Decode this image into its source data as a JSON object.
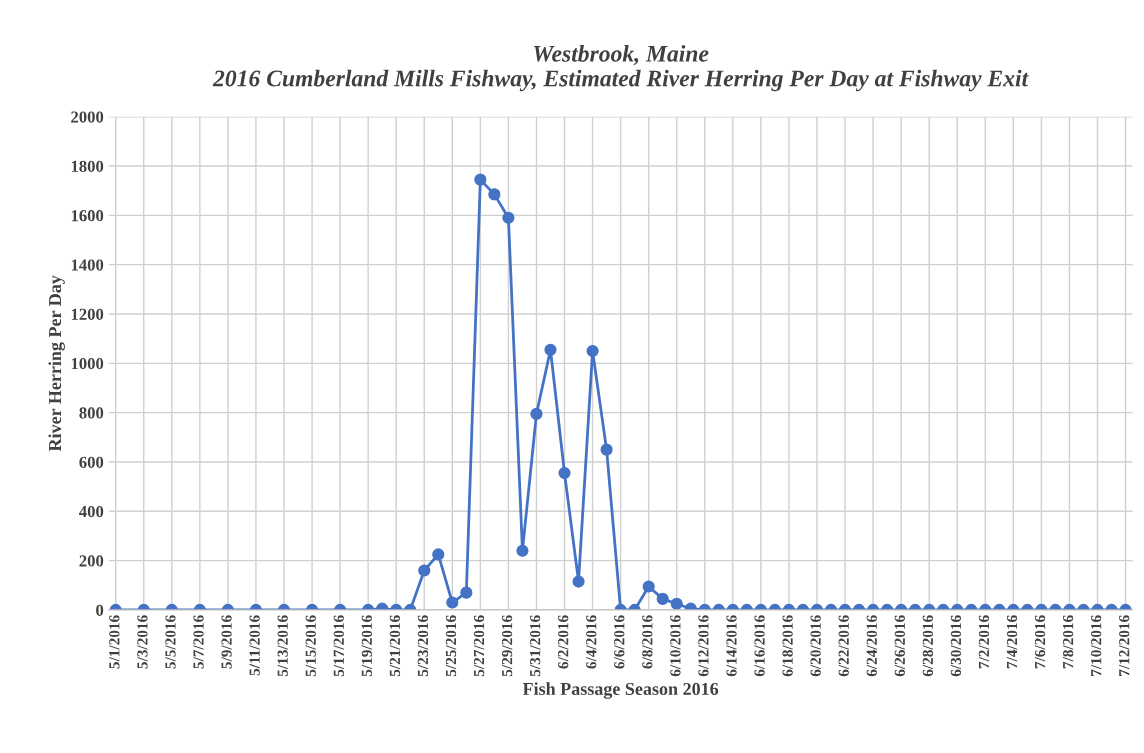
{
  "chart_data": {
    "type": "line",
    "title": "Westbrook, Maine\n2016 Cumberland Mills Fishway, Estimated River Herring Per Day at Fishway Exit",
    "xlabel": "Fish Passage Season 2016",
    "ylabel": "River Herring Per Day",
    "x": [
      "2016-05-01",
      "2016-05-03",
      "2016-05-05",
      "2016-05-07",
      "2016-05-09",
      "2016-05-11",
      "2016-05-13",
      "2016-05-15",
      "2016-05-17",
      "2016-05-19",
      "2016-05-20",
      "2016-05-21",
      "2016-05-22",
      "2016-05-23",
      "2016-05-24",
      "2016-05-25",
      "2016-05-26",
      "2016-05-27",
      "2016-05-28",
      "2016-05-29",
      "2016-05-30",
      "2016-05-31",
      "2016-06-01",
      "2016-06-02",
      "2016-06-03",
      "2016-06-04",
      "2016-06-05",
      "2016-06-06",
      "2016-06-07",
      "2016-06-08",
      "2016-06-09",
      "2016-06-10",
      "2016-06-11",
      "2016-06-12",
      "2016-06-13",
      "2016-06-14",
      "2016-06-15",
      "2016-06-16",
      "2016-06-17",
      "2016-06-18",
      "2016-06-19",
      "2016-06-20",
      "2016-06-21",
      "2016-06-22",
      "2016-06-23",
      "2016-06-24",
      "2016-06-25",
      "2016-06-26",
      "2016-06-27",
      "2016-06-28",
      "2016-06-29",
      "2016-06-30",
      "2016-07-01",
      "2016-07-02",
      "2016-07-03",
      "2016-07-04",
      "2016-07-05",
      "2016-07-06",
      "2016-07-07",
      "2016-07-08",
      "2016-07-09",
      "2016-07-10",
      "2016-07-11",
      "2016-07-12"
    ],
    "series": [
      {
        "color": "#4472c4",
        "values": [
          0,
          0,
          0,
          0,
          0,
          0,
          0,
          0,
          0,
          0,
          5,
          0,
          0,
          160,
          225,
          30,
          70,
          1745,
          1685,
          1590,
          240,
          795,
          1055,
          555,
          115,
          1050,
          650,
          0,
          0,
          95,
          45,
          25,
          5,
          0,
          0,
          0,
          0,
          0,
          0,
          0,
          0,
          0,
          0,
          0,
          0,
          0,
          0,
          0,
          0,
          0,
          0,
          0,
          0,
          0,
          0,
          0,
          0,
          0,
          0,
          0,
          0,
          0,
          0,
          0
        ]
      }
    ],
    "xlim": [
      "2016-04-30T12:00",
      "2016-07-12T12:00"
    ],
    "xticks": [
      {
        "value": "2016-05-01",
        "label": "5/1/2016"
      },
      {
        "value": "2016-05-03",
        "label": "5/3/2016"
      },
      {
        "value": "2016-05-05",
        "label": "5/5/2016"
      },
      {
        "value": "2016-05-07",
        "label": "5/7/2016"
      },
      {
        "value": "2016-05-09",
        "label": "5/9/2016"
      },
      {
        "value": "2016-05-11",
        "label": "5/11/2016"
      },
      {
        "value": "2016-05-13",
        "label": "5/13/2016"
      },
      {
        "value": "2016-05-15",
        "label": "5/15/2016"
      },
      {
        "value": "2016-05-17",
        "label": "5/17/2016"
      },
      {
        "value": "2016-05-19",
        "label": "5/19/2016"
      },
      {
        "value": "2016-05-21",
        "label": "5/21/2016"
      },
      {
        "value": "2016-05-23",
        "label": "5/23/2016"
      },
      {
        "value": "2016-05-25",
        "label": "5/25/2016"
      },
      {
        "value": "2016-05-27",
        "label": "5/27/2016"
      },
      {
        "value": "2016-05-29",
        "label": "5/29/2016"
      },
      {
        "value": "2016-05-31",
        "label": "5/31/2016"
      },
      {
        "value": "2016-06-02",
        "label": "6/2/2016"
      },
      {
        "value": "2016-06-04",
        "label": "6/4/2016"
      },
      {
        "value": "2016-06-06",
        "label": "6/6/2016"
      },
      {
        "value": "2016-06-08",
        "label": "6/8/2016"
      },
      {
        "value": "2016-06-10",
        "label": "6/10/2016"
      },
      {
        "value": "2016-06-12",
        "label": "6/12/2016"
      },
      {
        "value": "2016-06-14",
        "label": "6/14/2016"
      },
      {
        "value": "2016-06-16",
        "label": "6/16/2016"
      },
      {
        "value": "2016-06-18",
        "label": "6/18/2016"
      },
      {
        "value": "2016-06-20",
        "label": "6/20/2016"
      },
      {
        "value": "2016-06-22",
        "label": "6/22/2016"
      },
      {
        "value": "2016-06-24",
        "label": "6/24/2016"
      },
      {
        "value": "2016-06-26",
        "label": "6/26/2016"
      },
      {
        "value": "2016-06-28",
        "label": "6/28/2016"
      },
      {
        "value": "2016-06-30",
        "label": "6/30/2016"
      },
      {
        "value": "2016-07-02",
        "label": "7/2/2016"
      },
      {
        "value": "2016-07-04",
        "label": "7/4/2016"
      },
      {
        "value": "2016-07-06",
        "label": "7/6/2016"
      },
      {
        "value": "2016-07-08",
        "label": "7/8/2016"
      },
      {
        "value": "2016-07-10",
        "label": "7/10/2016"
      },
      {
        "value": "2016-07-12",
        "label": "7/12/2016"
      }
    ],
    "ylim": [
      0,
      2000
    ],
    "yticks": [
      0,
      200,
      400,
      600,
      800,
      1000,
      1200,
      1400,
      1600,
      1800,
      2000
    ],
    "grid": true,
    "marker": "circle",
    "line_style": "solid"
  }
}
